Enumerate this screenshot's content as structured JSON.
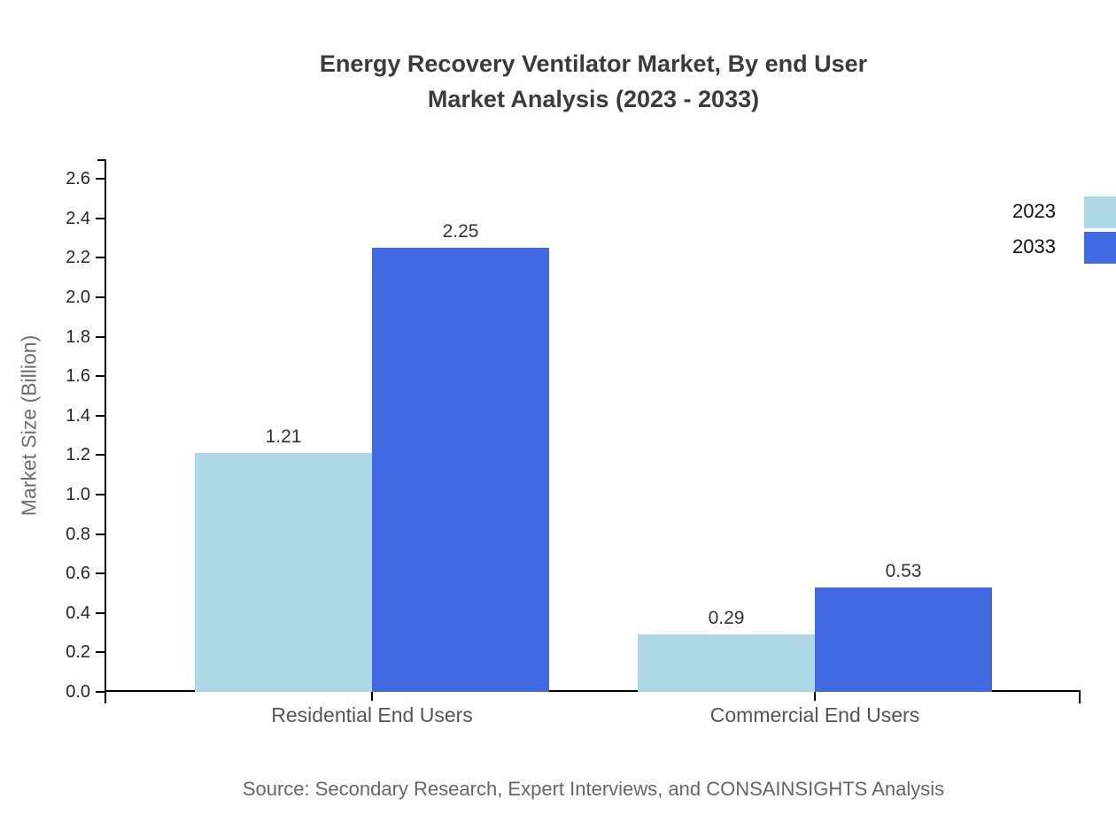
{
  "title": {
    "line1": "Energy Recovery Ventilator Market, By end User",
    "line2": "Market Analysis (2023 - 2033)"
  },
  "source": "Source: Secondary Research, Expert Interviews, and CONSAINSIGHTS Analysis",
  "legend": {
    "items": [
      {
        "label": "2023",
        "color": "#ADD8E6"
      },
      {
        "label": "2033",
        "color": "#4169E1"
      }
    ]
  },
  "chart_data": {
    "type": "bar",
    "title": "Energy Recovery Ventilator Market, By end User Market Analysis (2023 - 2033)",
    "categories": [
      "Residential End Users",
      "Commercial End Users"
    ],
    "series": [
      {
        "name": "2023",
        "color": "#ADD8E6",
        "values": [
          1.21,
          0.29
        ]
      },
      {
        "name": "2033",
        "color": "#4169E1",
        "values": [
          2.25,
          0.53
        ]
      }
    ],
    "xlabel": "",
    "ylabel": "Market Size (Billion)",
    "ylim": [
      0,
      2.7
    ],
    "ytick_step": 0.2,
    "ytick_max": 2.6,
    "grid": false,
    "legend_position": "top-right",
    "value_label_format": "2-decimals",
    "axis_color": "#000000"
  }
}
